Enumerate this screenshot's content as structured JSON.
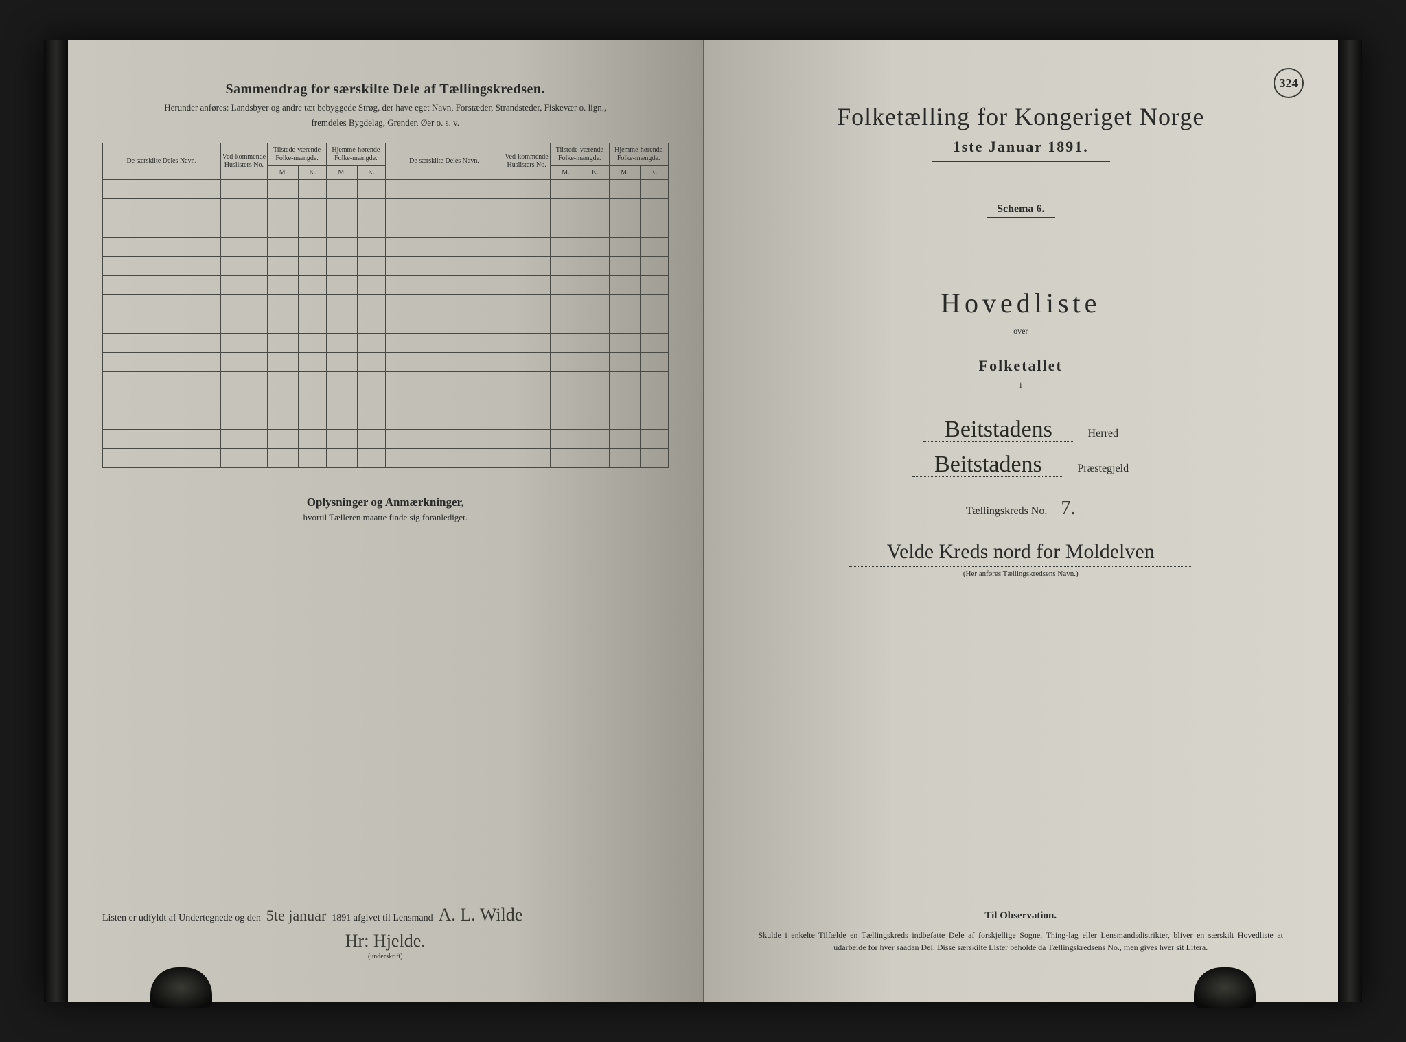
{
  "left_page": {
    "title": "Sammendrag for særskilte Dele af Tællingskredsen.",
    "subtitle1": "Herunder anføres: Landsbyer og andre tæt bebyggede Strøg, der have eget Navn, Forstæder, Strandsteder, Fiskevær o. lign.,",
    "subtitle2": "fremdeles Bygdelag, Grender, Øer o. s. v.",
    "table": {
      "headers": {
        "col1": "De særskilte Deles Navn.",
        "col2": "Ved-kommende Huslisters No.",
        "col3": "Tilstede-værende Folke-mængde.",
        "col4": "Hjemme-hørende Folke-mængde.",
        "col5": "De særskilte Deles Navn.",
        "col6": "Ved-kommende Huslisters No.",
        "col7": "Tilstede-værende Folke-mængde.",
        "col8": "Hjemme-hørende Folke-mængde.",
        "mk_m": "M.",
        "mk_k": "K."
      },
      "row_count": 15
    },
    "oplys_title": "Oplysninger og Anmærkninger,",
    "oplys_sub": "hvortil Tælleren maatte finde sig foranlediget.",
    "sign_prefix": "Listen er udfyldt af Undertegnede og den",
    "sign_date": "5te januar",
    "sign_year": "1891 afgivet til Lensmand",
    "signature1": "A. L. Wilde",
    "signature2": "Hr: Hjelde.",
    "sign_note": "(underskrift)"
  },
  "right_page": {
    "page_number": "324",
    "census_title": "Folketælling for Kongeriget Norge",
    "census_date": "1ste Januar 1891.",
    "schema": "Schema 6.",
    "hovedliste": "Hovedliste",
    "over": "over",
    "folketallet": "Folketallet",
    "small_i": "i",
    "herred_value": "Beitstadens",
    "herred_label": "Herred",
    "praeste_value": "Beitstadens",
    "praeste_label": "Præstegjeld",
    "kreds_label": "Tællingskreds No.",
    "kreds_no": "7.",
    "kreds_name": "Velde Kreds nord for Moldelven",
    "kreds_note": "(Her anføres Tællingskredsens Navn.)",
    "obs_title": "Til Observation.",
    "obs_text": "Skulde i enkelte Tilfælde en Tællingskreds indbefatte Dele af forskjellige Sogne, Thing-lag eller Lensmandsdistrikter, bliver en særskilt Hovedliste at udarbeide for hver saadan Del. Disse særskilte Lister beholde da Tællingskredsens No., men gives hver sit Litera."
  },
  "colors": {
    "page_bg": "#d0cec4",
    "text": "#2a2a28",
    "border": "#4a4a44",
    "background": "#1a1a1a"
  }
}
